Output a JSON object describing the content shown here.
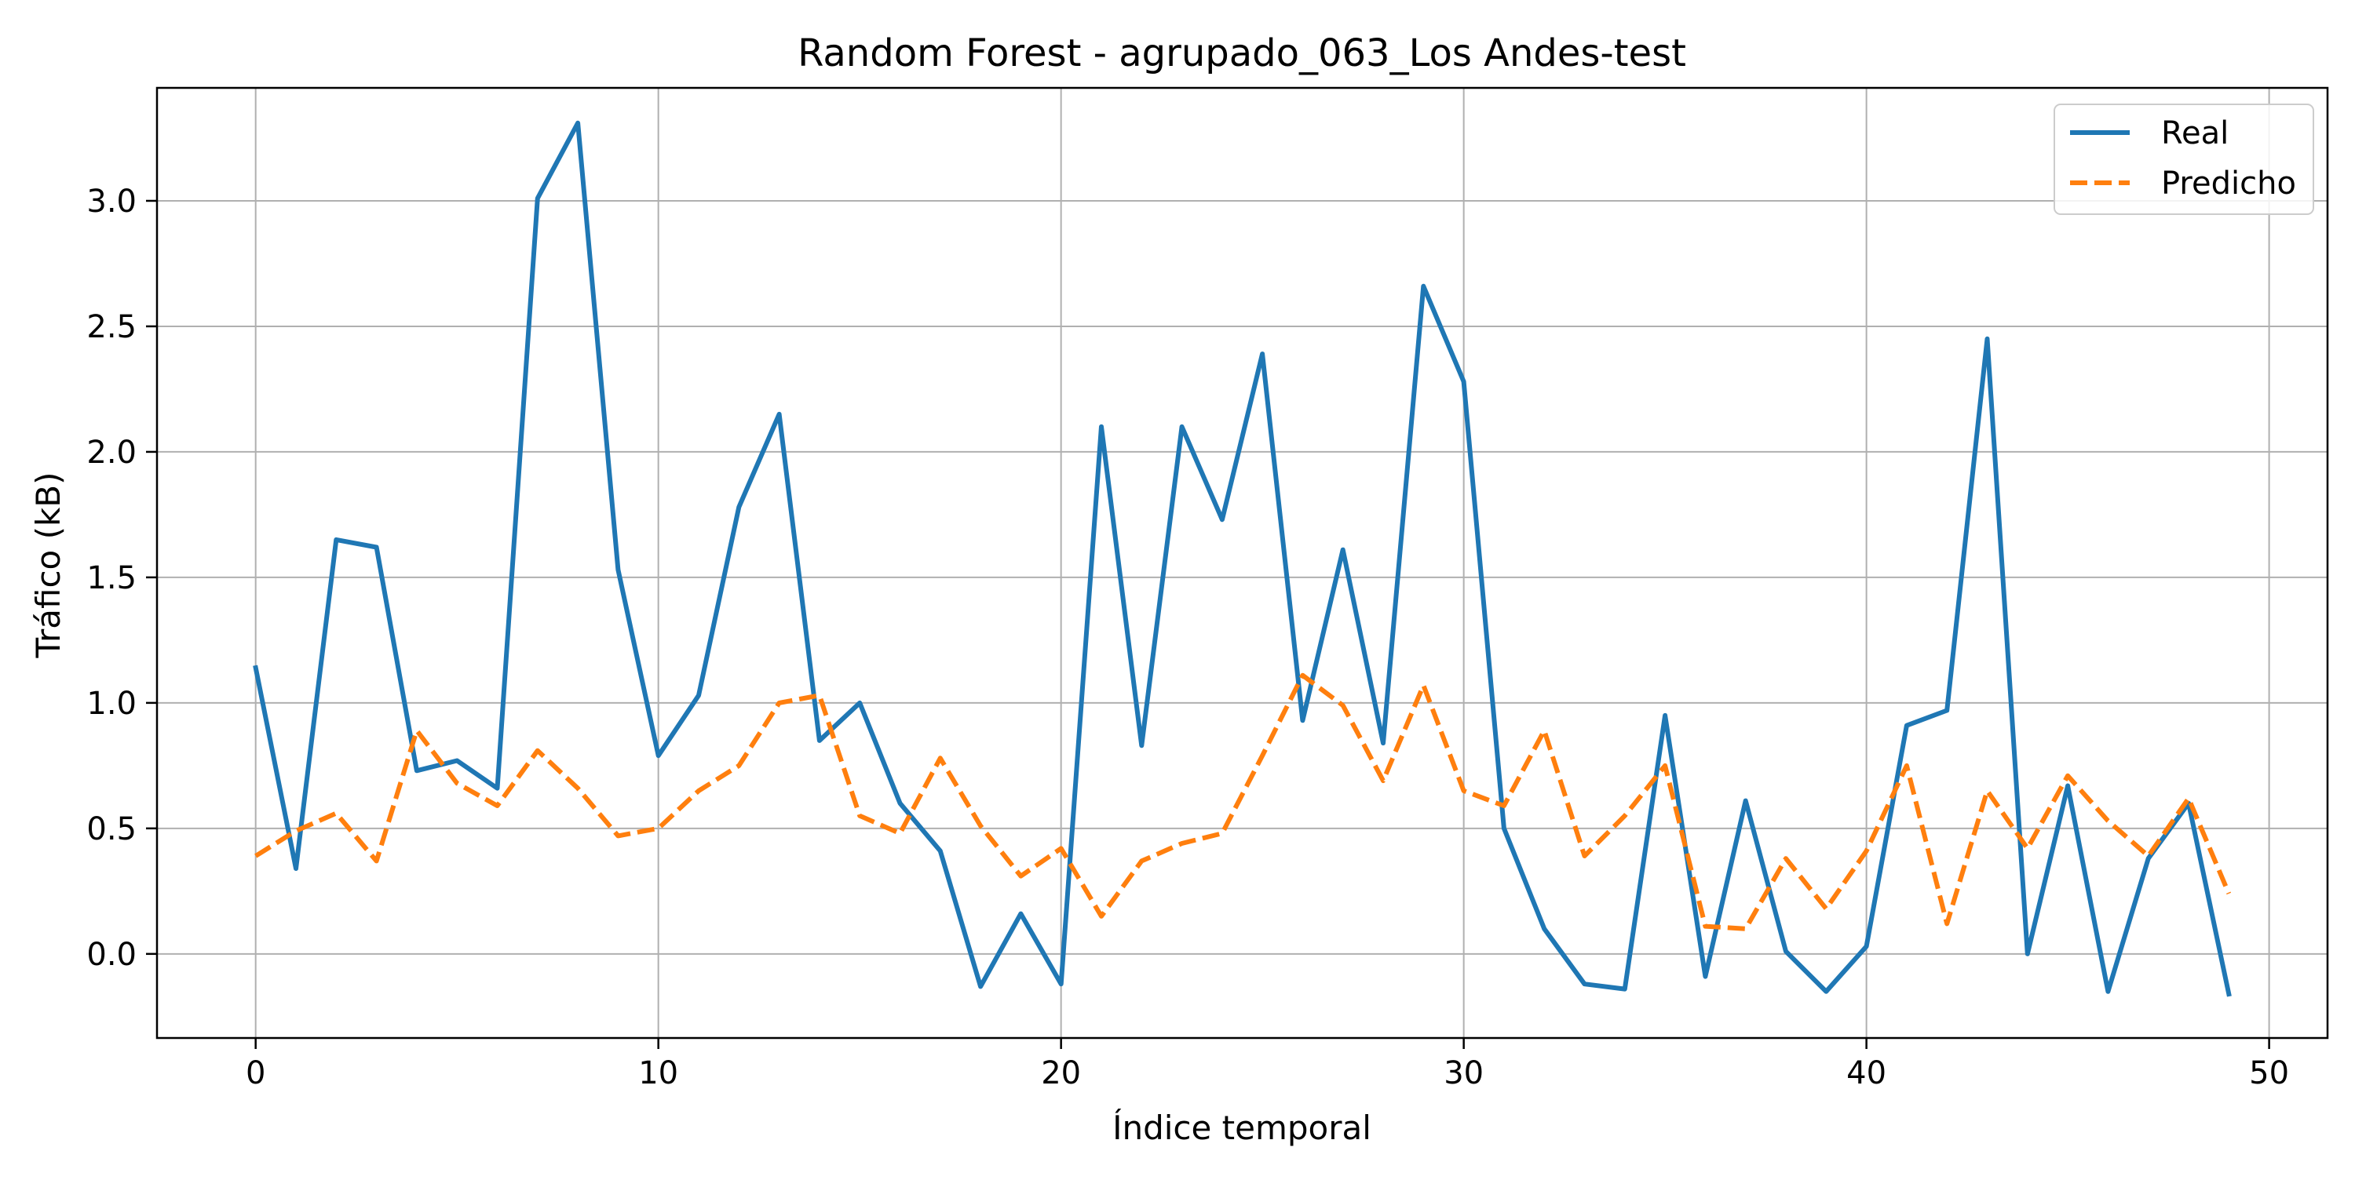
{
  "chart_data": {
    "type": "line",
    "title": "Random Forest - agrupado_063_Los Andes-test",
    "xlabel": "Índice temporal",
    "ylabel": "Tráfico (kB)",
    "xlim": [
      -2.45,
      51.45
    ],
    "ylim": [
      -0.335,
      3.45
    ],
    "xticks": [
      0,
      10,
      20,
      30,
      40,
      50
    ],
    "xtick_labels": [
      "0",
      "10",
      "20",
      "30",
      "40",
      "50"
    ],
    "yticks": [
      0.0,
      0.5,
      1.0,
      1.5,
      2.0,
      2.5,
      3.0
    ],
    "ytick_labels": [
      "0.0",
      "0.5",
      "1.0",
      "1.5",
      "2.0",
      "2.5",
      "3.0"
    ],
    "grid": true,
    "legend_position": "top-right",
    "x": [
      0,
      1,
      2,
      3,
      4,
      5,
      6,
      7,
      8,
      9,
      10,
      11,
      12,
      13,
      14,
      15,
      16,
      17,
      18,
      19,
      20,
      21,
      22,
      23,
      24,
      25,
      26,
      27,
      28,
      29,
      30,
      31,
      32,
      33,
      34,
      35,
      36,
      37,
      38,
      39,
      40,
      41,
      42,
      43,
      44,
      45,
      46,
      47,
      48,
      49
    ],
    "series": [
      {
        "name": "Real",
        "color": "#1f77b4",
        "style": "solid",
        "values": [
          1.14,
          0.34,
          1.65,
          1.62,
          0.73,
          0.77,
          0.66,
          3.01,
          3.31,
          1.53,
          0.79,
          1.03,
          1.78,
          2.15,
          0.85,
          1.0,
          0.6,
          0.41,
          -0.13,
          0.16,
          -0.12,
          2.1,
          0.83,
          2.1,
          1.73,
          2.39,
          0.93,
          1.61,
          0.84,
          2.66,
          2.28,
          0.5,
          0.1,
          -0.12,
          -0.14,
          0.95,
          -0.09,
          0.61,
          0.01,
          -0.15,
          0.03,
          0.91,
          0.97,
          2.45,
          0.0,
          0.67,
          -0.15,
          0.38,
          0.6,
          -0.16
        ]
      },
      {
        "name": "Predicho",
        "color": "#ff7f0e",
        "style": "dashed",
        "values": [
          0.39,
          0.49,
          0.56,
          0.37,
          0.89,
          0.68,
          0.59,
          0.81,
          0.66,
          0.47,
          0.5,
          0.65,
          0.75,
          1.0,
          1.03,
          0.55,
          0.48,
          0.78,
          0.51,
          0.31,
          0.42,
          0.15,
          0.37,
          0.44,
          0.48,
          0.79,
          1.11,
          0.99,
          0.69,
          1.07,
          0.65,
          0.59,
          0.89,
          0.39,
          0.55,
          0.75,
          0.11,
          0.1,
          0.38,
          0.18,
          0.41,
          0.75,
          0.12,
          0.65,
          0.42,
          0.71,
          0.53,
          0.39,
          0.62,
          0.24
        ]
      }
    ]
  }
}
